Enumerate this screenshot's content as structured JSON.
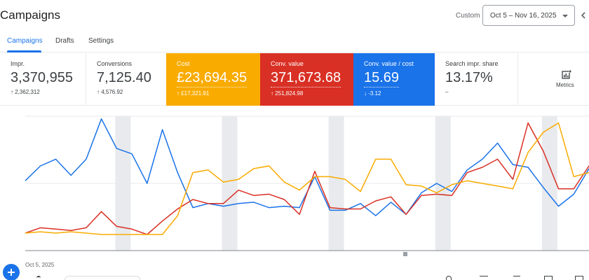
{
  "header": {
    "title": "Campaigns",
    "range_label": "Custom",
    "date_range": "Oct 5 – Nov 16, 2025"
  },
  "tabs": [
    {
      "label": "Campaigns",
      "active": true
    },
    {
      "label": "Drafts",
      "active": false
    },
    {
      "label": "Settings",
      "active": false
    }
  ],
  "scorecards": [
    {
      "label": "Impr.",
      "value": "3,370,955",
      "delta": "2,362,312",
      "direction": "up",
      "bg": "#ffffff"
    },
    {
      "label": "Conversions",
      "value": "7,125.40",
      "delta": "4,576.92",
      "direction": "up",
      "bg": "#ffffff"
    },
    {
      "label": "Cost",
      "value": "£23,694.35",
      "delta": "£17,321.91",
      "direction": "up",
      "bg": "#f9ab00"
    },
    {
      "label": "Conv. value",
      "value": "371,673.68",
      "delta": "251,824.98",
      "direction": "up",
      "bg": "#d93025"
    },
    {
      "label": "Conv. value / cost",
      "value": "15.69",
      "delta": "-3.12",
      "direction": "down",
      "bg": "#1a73e8"
    },
    {
      "label": "Search impr. share",
      "value": "13.17%",
      "delta": "–",
      "direction": "none",
      "bg": "#ffffff"
    }
  ],
  "metrics_button": {
    "label": "Metrics",
    "icon": "add-chart-icon"
  },
  "chart": {
    "start_date_label": "Oct 5, 2025",
    "colors": {
      "cost": "#f9ab00",
      "conv_value": "#d93025",
      "roas": "#1a73e8",
      "band": "#e8eaed"
    }
  },
  "chart_data": {
    "type": "line",
    "x_label_first": "Oct 5, 2025",
    "series": [
      {
        "name": "Conv. value / cost",
        "color": "#1a73e8",
        "values": [
          0.52,
          0.63,
          0.68,
          0.56,
          0.68,
          0.98,
          0.76,
          0.72,
          0.5,
          0.9,
          0.58,
          0.32,
          0.35,
          0.33,
          0.35,
          0.36,
          0.32,
          0.33,
          0.32,
          0.55,
          0.3,
          0.3,
          0.35,
          0.26,
          0.36,
          0.27,
          0.43,
          0.5,
          0.44,
          0.6,
          0.68,
          0.8,
          0.64,
          0.62,
          0.47,
          0.33,
          0.42,
          0.61
        ]
      },
      {
        "name": "Conv. value",
        "color": "#d93025",
        "values": [
          0.13,
          0.17,
          0.16,
          0.15,
          0.17,
          0.29,
          0.18,
          0.16,
          0.12,
          0.22,
          0.31,
          0.38,
          0.35,
          0.35,
          0.45,
          0.41,
          0.42,
          0.38,
          0.27,
          0.59,
          0.32,
          0.31,
          0.31,
          0.37,
          0.4,
          0.27,
          0.41,
          0.42,
          0.41,
          0.58,
          0.62,
          0.68,
          0.53,
          0.95,
          0.74,
          0.46,
          0.46,
          0.63
        ]
      },
      {
        "name": "Cost",
        "color": "#f9ab00",
        "values": [
          0.13,
          0.14,
          0.13,
          0.14,
          0.13,
          0.12,
          0.12,
          0.12,
          0.12,
          0.12,
          0.26,
          0.58,
          0.6,
          0.51,
          0.53,
          0.61,
          0.63,
          0.51,
          0.45,
          0.55,
          0.55,
          0.53,
          0.44,
          0.68,
          0.68,
          0.49,
          0.48,
          0.43,
          0.49,
          0.52,
          0.5,
          0.48,
          0.46,
          0.73,
          0.88,
          0.95,
          0.55,
          0.58
        ]
      }
    ],
    "bands": [
      6,
      13,
      20,
      27,
      34
    ],
    "grid": true
  }
}
